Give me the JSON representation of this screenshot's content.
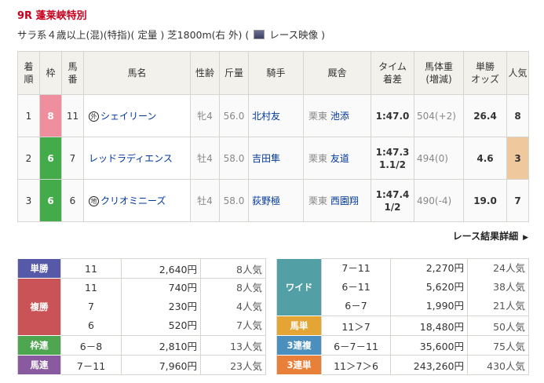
{
  "race": {
    "title": "9R 蓬莱峡特別",
    "conditions": "サラ系４歳以上(混)(特指)( 定量 ) 芝1800m(右 外)  (",
    "video_label": "レース映像 )"
  },
  "headers": [
    "着順",
    "枠",
    "馬番",
    "馬名",
    "性齢",
    "斤量",
    "騎手",
    "厩舎",
    "タイム着差",
    "馬体重(増減)",
    "単勝オッズ",
    "人気"
  ],
  "header_lines": {
    "h0a": "着",
    "h0b": "順",
    "h2a": "馬",
    "h2b": "番",
    "h8a": "タイム",
    "h8b": "着差",
    "h9a": "馬体重",
    "h9b": "(増減)",
    "h10a": "単勝",
    "h10b": "オッズ"
  },
  "results": [
    {
      "rank": "1",
      "waku": "8",
      "waku_color": "#ef8f9e",
      "num": "11",
      "mark": "外",
      "name": "シェイリーン",
      "sexage": "牝4",
      "weight": "56.0",
      "jockey": "北村友",
      "region": "栗東",
      "trainer": "池添",
      "time": "1:47.0",
      "margin": "",
      "body": "504(+2)",
      "odds": "26.4",
      "pop": "8",
      "pop_bg": ""
    },
    {
      "rank": "2",
      "waku": "6",
      "waku_color": "#43ab4a",
      "num": "7",
      "mark": "",
      "name": "レッドラディエンス",
      "sexage": "牡4",
      "weight": "58.0",
      "jockey": "吉田隼",
      "region": "栗東",
      "trainer": "友道",
      "time": "1:47.3",
      "margin": "1.1/2",
      "body": "494(0)",
      "odds": "4.6",
      "pop": "3",
      "pop_bg": "#efc89e"
    },
    {
      "rank": "3",
      "waku": "6",
      "waku_color": "#43ab4a",
      "num": "6",
      "mark": "地",
      "name": "クリオミニーズ",
      "sexage": "牡4",
      "weight": "58.0",
      "jockey": "荻野極",
      "region": "栗東",
      "trainer": "西園翔",
      "time": "1:47.4",
      "margin": "1/2",
      "body": "490(-4)",
      "odds": "19.0",
      "pop": "7",
      "pop_bg": ""
    }
  ],
  "detail_link": "レース結果詳細",
  "payouts_left": [
    {
      "label": "単勝",
      "color": "#5658a8",
      "rows": [
        [
          "11",
          "2,640円",
          "8人気"
        ]
      ]
    },
    {
      "label": "複勝",
      "color": "#c95356",
      "rows": [
        [
          "11",
          "740円",
          "8人気"
        ],
        [
          "7",
          "230円",
          "4人気"
        ],
        [
          "6",
          "520円",
          "7人気"
        ]
      ]
    },
    {
      "label": "枠連",
      "color": "#4fa650",
      "rows": [
        [
          "6－8",
          "2,810円",
          "13人気"
        ]
      ]
    },
    {
      "label": "馬連",
      "color": "#8a5aa0",
      "rows": [
        [
          "7－11",
          "7,960円",
          "23人気"
        ]
      ]
    }
  ],
  "payouts_right": [
    {
      "label": "ワイド",
      "color": "#52a0a5",
      "rows": [
        [
          "7－11",
          "2,270円",
          "24人気"
        ],
        [
          "6－11",
          "5,620円",
          "38人気"
        ],
        [
          "6－7",
          "1,990円",
          "21人気"
        ]
      ]
    },
    {
      "label": "馬単",
      "color": "#e5a535",
      "rows": [
        [
          "11＞7",
          "18,480円",
          "50人気"
        ]
      ]
    },
    {
      "label": "3連複",
      "color": "#4a8fbd",
      "rows": [
        [
          "6－7－11",
          "35,600円",
          "75人気"
        ]
      ]
    },
    {
      "label": "3連単",
      "color": "#e8803a",
      "rows": [
        [
          "11＞7＞6",
          "243,260円",
          "430人気"
        ]
      ]
    }
  ]
}
